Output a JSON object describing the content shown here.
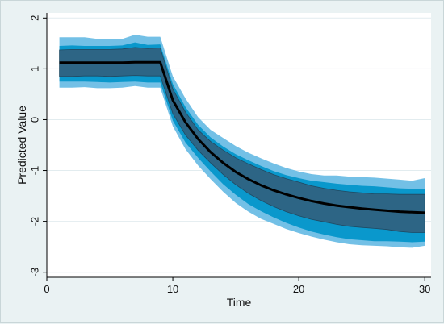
{
  "chart_data": {
    "type": "line",
    "title": "",
    "xlabel": "Time",
    "ylabel": "Predicted Value",
    "xlim": [
      0,
      30.5
    ],
    "ylim": [
      -3.1,
      2.1
    ],
    "xticks": [
      0,
      10,
      20,
      30
    ],
    "yticks": [
      -3,
      -2,
      -1,
      0,
      1,
      2
    ],
    "grid": true,
    "legend": "none",
    "colors": {
      "outer_band": "#73c0e6",
      "middle_band": "#0a98cc",
      "inner_band": "#2d6585",
      "line": "#000000",
      "plot_background": "#ffffff",
      "grid": "#e2ecef"
    },
    "x": [
      1,
      2,
      3,
      4,
      5,
      6,
      7,
      8,
      9,
      10,
      11,
      12,
      13,
      14,
      15,
      16,
      17,
      18,
      19,
      20,
      21,
      22,
      23,
      24,
      25,
      26,
      27,
      28,
      29,
      30
    ],
    "series": [
      {
        "values": [
          1.12,
          1.12,
          1.12,
          1.12,
          1.12,
          1.12,
          1.13,
          1.13,
          1.13,
          0.38,
          -0.05,
          -0.38,
          -0.64,
          -0.85,
          -1.03,
          -1.17,
          -1.29,
          -1.39,
          -1.47,
          -1.54,
          -1.6,
          -1.65,
          -1.69,
          -1.72,
          -1.75,
          -1.77,
          -1.79,
          -1.81,
          -1.82,
          -1.83
        ]
      }
    ],
    "bands": {
      "outer_upper": [
        1.62,
        1.62,
        1.62,
        1.59,
        1.59,
        1.59,
        1.67,
        1.63,
        1.63,
        0.85,
        0.42,
        0.05,
        -0.2,
        -0.36,
        -0.52,
        -0.65,
        -0.76,
        -0.86,
        -0.95,
        -1.02,
        -1.07,
        -1.1,
        -1.1,
        -1.12,
        -1.13,
        -1.14,
        -1.16,
        -1.18,
        -1.2,
        -1.15
      ],
      "middle_upper": [
        1.45,
        1.46,
        1.45,
        1.45,
        1.45,
        1.46,
        1.52,
        1.47,
        1.48,
        0.7,
        0.25,
        -0.1,
        -0.35,
        -0.53,
        -0.68,
        -0.8,
        -0.91,
        -1.01,
        -1.09,
        -1.15,
        -1.2,
        -1.23,
        -1.26,
        -1.28,
        -1.3,
        -1.31,
        -1.33,
        -1.35,
        -1.36,
        -1.37
      ],
      "inner_upper": [
        1.37,
        1.38,
        1.38,
        1.38,
        1.38,
        1.39,
        1.42,
        1.4,
        1.41,
        0.6,
        0.15,
        -0.2,
        -0.43,
        -0.6,
        -0.75,
        -0.87,
        -0.98,
        -1.08,
        -1.16,
        -1.23,
        -1.3,
        -1.35,
        -1.39,
        -1.42,
        -1.44,
        -1.46,
        -1.46,
        -1.47,
        -1.47,
        -1.47
      ],
      "inner_lower": [
        0.85,
        0.85,
        0.86,
        0.86,
        0.85,
        0.86,
        0.87,
        0.86,
        0.86,
        0.12,
        -0.3,
        -0.6,
        -0.85,
        -1.08,
        -1.28,
        -1.45,
        -1.59,
        -1.71,
        -1.81,
        -1.89,
        -1.96,
        -2.01,
        -2.06,
        -2.1,
        -2.12,
        -2.14,
        -2.16,
        -2.2,
        -2.22,
        -2.22
      ],
      "middle_lower": [
        0.75,
        0.75,
        0.75,
        0.74,
        0.73,
        0.74,
        0.75,
        0.73,
        0.73,
        -0.02,
        -0.45,
        -0.75,
        -1.02,
        -1.27,
        -1.48,
        -1.66,
        -1.8,
        -1.92,
        -2.03,
        -2.12,
        -2.2,
        -2.26,
        -2.31,
        -2.35,
        -2.37,
        -2.39,
        -2.39,
        -2.4,
        -2.41,
        -2.4
      ],
      "outer_lower": [
        0.63,
        0.63,
        0.64,
        0.62,
        0.62,
        0.63,
        0.66,
        0.63,
        0.63,
        -0.13,
        -0.58,
        -0.9,
        -1.17,
        -1.42,
        -1.64,
        -1.81,
        -1.95,
        -2.05,
        -2.15,
        -2.23,
        -2.3,
        -2.36,
        -2.41,
        -2.45,
        -2.47,
        -2.48,
        -2.49,
        -2.51,
        -2.52,
        -2.48
      ]
    }
  }
}
